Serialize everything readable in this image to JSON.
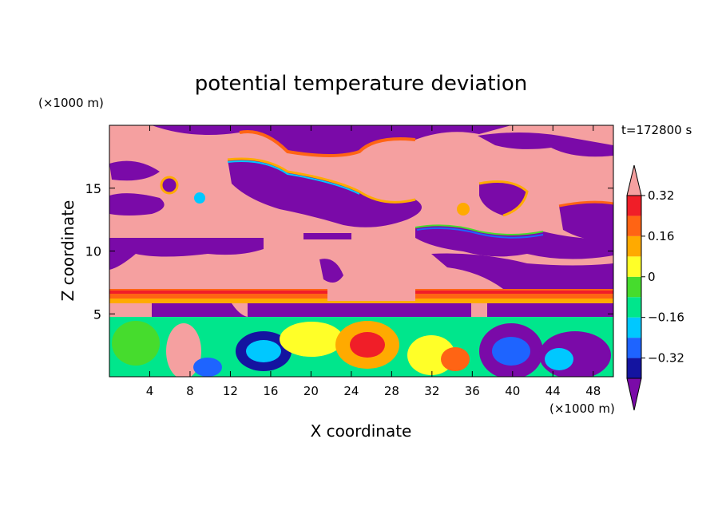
{
  "chart_data": {
    "type": "heatmap",
    "title": "potential temperature deviation",
    "xlabel": "X coordinate",
    "ylabel": "Z coordinate",
    "x_unit": "(×1000 m)",
    "y_unit": "(×1000 m)",
    "time_label": "t=172800 s",
    "xlim": [
      0,
      50
    ],
    "ylim": [
      0,
      20
    ],
    "x_ticks": [
      "4",
      "8",
      "12",
      "16",
      "20",
      "24",
      "28",
      "32",
      "36",
      "40",
      "44",
      "48"
    ],
    "y_ticks": [
      "5",
      "10",
      "15"
    ],
    "colorbar": {
      "tick_labels": [
        "0.32",
        "0.16",
        "0",
        "−0.16",
        "−0.32"
      ],
      "levels": [
        -0.4,
        -0.32,
        -0.24,
        -0.16,
        -0.08,
        0,
        0.08,
        0.16,
        0.24,
        0.32,
        0.4
      ],
      "colors": [
        "#7a0aa8",
        "#1414a0",
        "#1e64ff",
        "#00c8ff",
        "#00e68c",
        "#46dc2d",
        "#ffff28",
        "#ffaa00",
        "#ff6414",
        "#f01e28",
        "#f5a0a0"
      ]
    }
  }
}
